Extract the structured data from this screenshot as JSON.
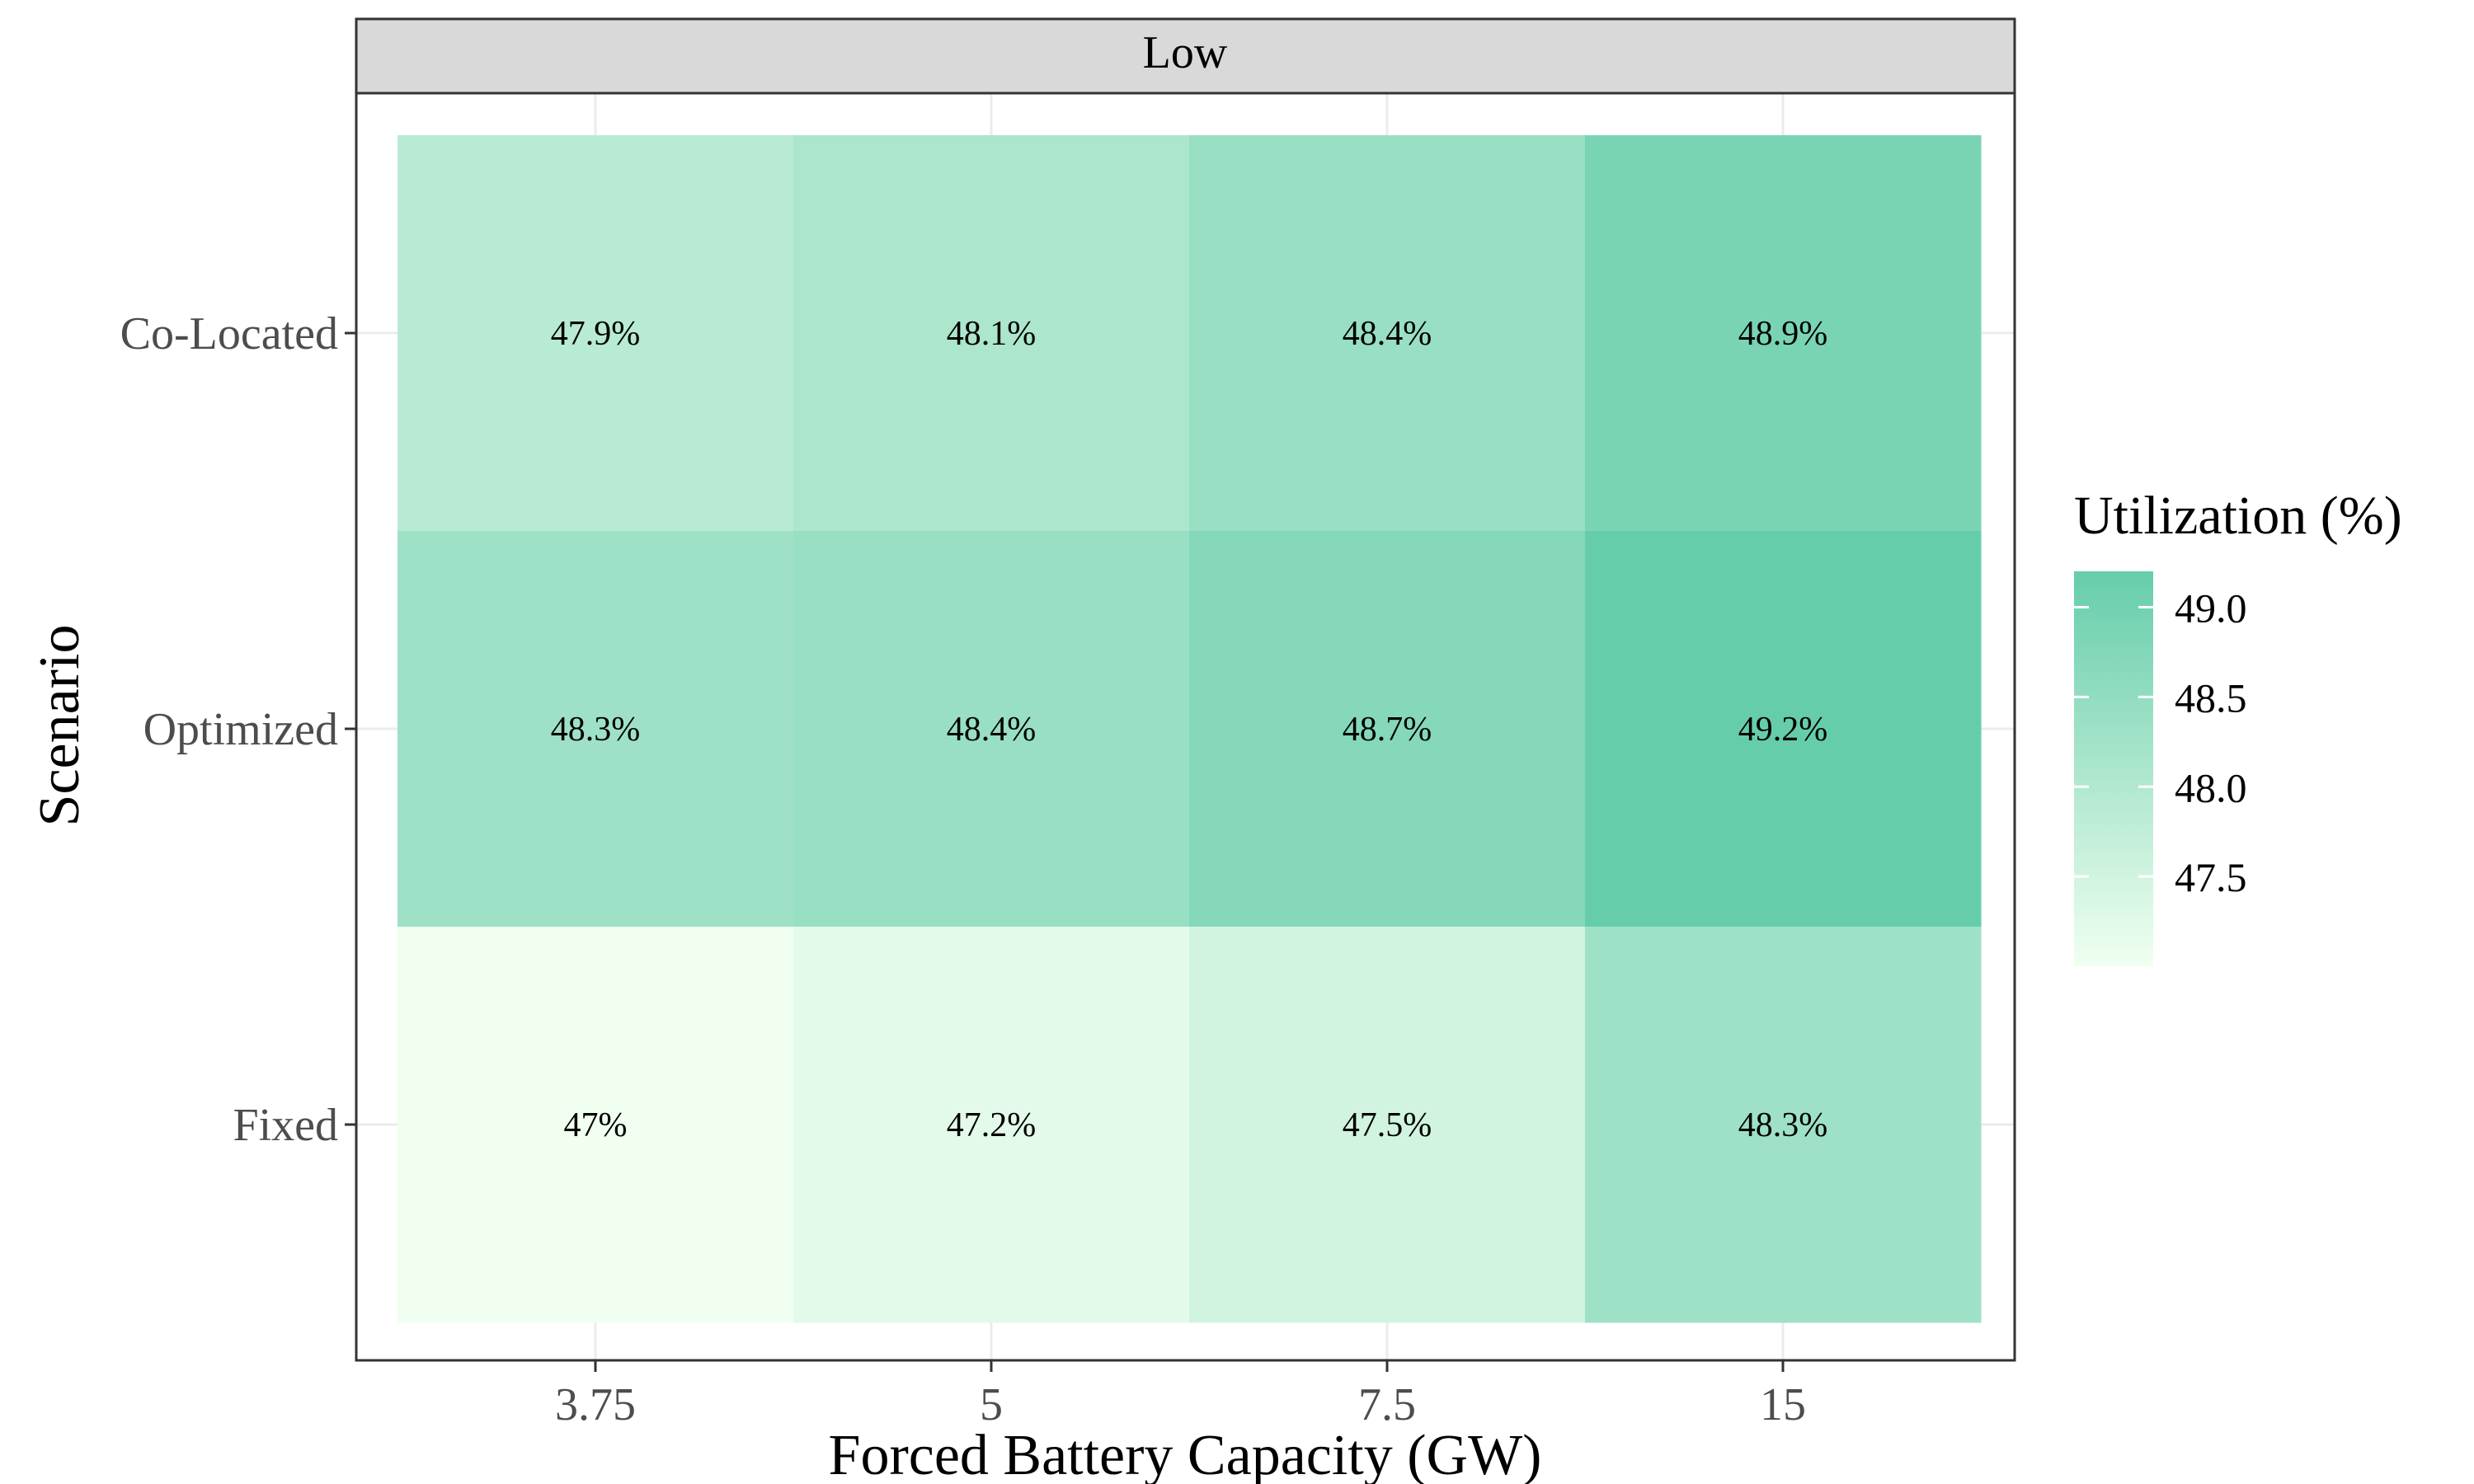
{
  "chart_data": {
    "type": "heatmap",
    "facet_label": "Low",
    "xlabel": "Forced Battery Capacity (GW)",
    "ylabel": "Scenario",
    "x_categories": [
      "3.75",
      "5",
      "7.5",
      "15"
    ],
    "y_categories": [
      "Co-Located",
      "Optimized",
      "Fixed"
    ],
    "values": [
      [
        47.9,
        48.1,
        48.4,
        48.9
      ],
      [
        48.3,
        48.4,
        48.7,
        49.2
      ],
      [
        47.0,
        47.2,
        47.5,
        48.3
      ]
    ],
    "cell_labels": [
      [
        "47.9%",
        "48.1%",
        "48.4%",
        "48.9%"
      ],
      [
        "48.3%",
        "48.4%",
        "48.7%",
        "49.2%"
      ],
      [
        "47%",
        "47.2%",
        "47.5%",
        "48.3%"
      ]
    ],
    "legend": {
      "title": "Utilization (%)",
      "ticks": [
        "49.0",
        "48.5",
        "48.0",
        "47.5"
      ],
      "tick_values": [
        49.0,
        48.5,
        48.0,
        47.5
      ],
      "range": [
        47.0,
        49.2
      ],
      "placement": "right"
    },
    "colors": {
      "low": "#f0fff0",
      "high": "#66cdaa",
      "strip_fill": "#d9d9d9",
      "grid": "#ebebeb",
      "border": "#333333"
    },
    "grid": true
  }
}
